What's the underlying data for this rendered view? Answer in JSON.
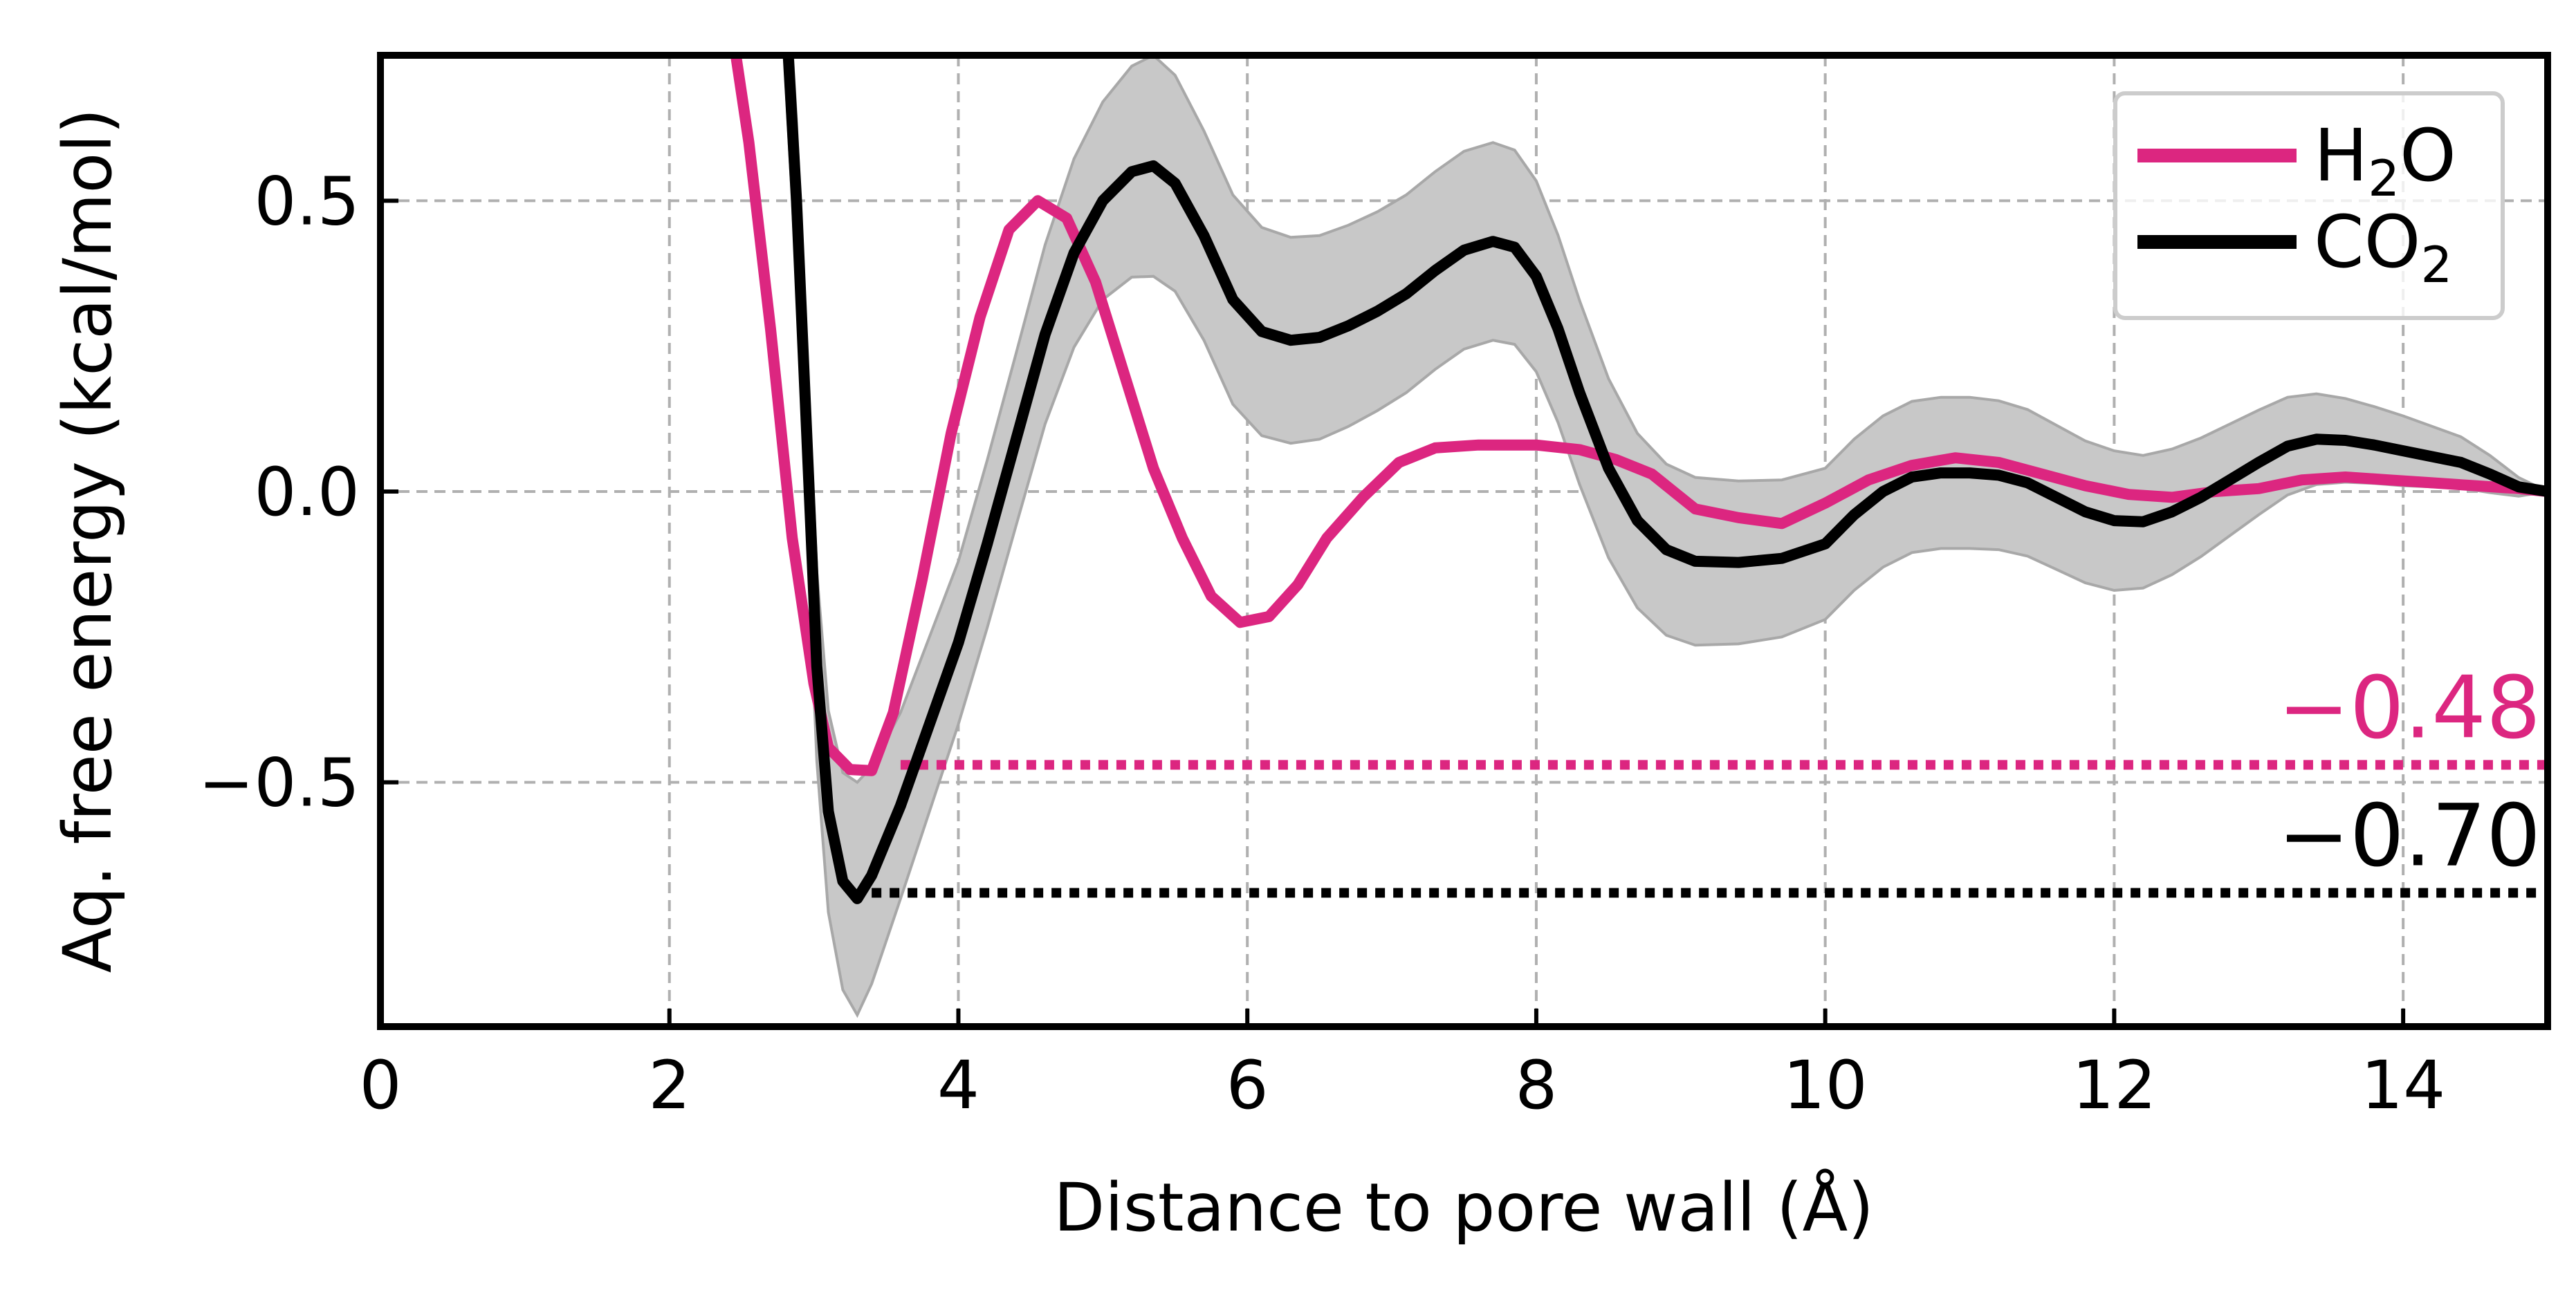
{
  "chart_data": {
    "type": "line",
    "xlabel": "Distance to pore wall (Å)",
    "ylabel": "Aq. free energy  (kcal/mol)",
    "xlim": [
      0,
      15
    ],
    "ylim": [
      -0.92,
      0.75
    ],
    "x_ticks": [
      0,
      2,
      4,
      6,
      8,
      10,
      12,
      14
    ],
    "x_tick_labels": [
      "0",
      "2",
      "4",
      "6",
      "8",
      "10",
      "12",
      "14"
    ],
    "y_ticks": [
      0.5,
      0.0,
      -0.5
    ],
    "y_tick_labels": [
      "0.5",
      "0.0",
      "−0.5"
    ],
    "grid": true,
    "legend_position": "top-right",
    "series": [
      {
        "name_parts": [
          "H",
          "2",
          "O"
        ],
        "color": "#dc2680",
        "points": [
          [
            2.4,
            0.85
          ],
          [
            2.55,
            0.6
          ],
          [
            2.7,
            0.28
          ],
          [
            2.85,
            -0.08
          ],
          [
            3.0,
            -0.33
          ],
          [
            3.1,
            -0.44
          ],
          [
            3.25,
            -0.478
          ],
          [
            3.4,
            -0.48
          ],
          [
            3.55,
            -0.38
          ],
          [
            3.75,
            -0.15
          ],
          [
            3.95,
            0.1
          ],
          [
            4.15,
            0.3
          ],
          [
            4.35,
            0.45
          ],
          [
            4.55,
            0.5
          ],
          [
            4.75,
            0.47
          ],
          [
            4.95,
            0.36
          ],
          [
            5.15,
            0.2
          ],
          [
            5.35,
            0.04
          ],
          [
            5.55,
            -0.08
          ],
          [
            5.75,
            -0.18
          ],
          [
            5.95,
            -0.225
          ],
          [
            6.15,
            -0.215
          ],
          [
            6.35,
            -0.16
          ],
          [
            6.55,
            -0.08
          ],
          [
            6.8,
            -0.01
          ],
          [
            7.05,
            0.05
          ],
          [
            7.3,
            0.075
          ],
          [
            7.6,
            0.08
          ],
          [
            8.0,
            0.08
          ],
          [
            8.3,
            0.072
          ],
          [
            8.55,
            0.055
          ],
          [
            8.8,
            0.03
          ],
          [
            9.1,
            -0.03
          ],
          [
            9.4,
            -0.045
          ],
          [
            9.7,
            -0.055
          ],
          [
            10.0,
            -0.02
          ],
          [
            10.3,
            0.02
          ],
          [
            10.6,
            0.045
          ],
          [
            10.9,
            0.058
          ],
          [
            11.2,
            0.05
          ],
          [
            11.5,
            0.03
          ],
          [
            11.8,
            0.01
          ],
          [
            12.1,
            -0.005
          ],
          [
            12.4,
            -0.01
          ],
          [
            12.7,
            0.0
          ],
          [
            13.0,
            0.005
          ],
          [
            13.3,
            0.02
          ],
          [
            13.6,
            0.025
          ],
          [
            13.9,
            0.02
          ],
          [
            14.2,
            0.015
          ],
          [
            14.5,
            0.01
          ],
          [
            14.8,
            0.005
          ],
          [
            15.0,
            0.0
          ]
        ]
      },
      {
        "name_parts": [
          "CO",
          "2",
          ""
        ],
        "color": "#000000",
        "points": [
          [
            2.8,
            0.85
          ],
          [
            2.88,
            0.5
          ],
          [
            2.95,
            0.1
          ],
          [
            3.02,
            -0.3
          ],
          [
            3.1,
            -0.55
          ],
          [
            3.2,
            -0.67
          ],
          [
            3.3,
            -0.7
          ],
          [
            3.4,
            -0.66
          ],
          [
            3.6,
            -0.54
          ],
          [
            3.8,
            -0.4
          ],
          [
            4.0,
            -0.26
          ],
          [
            4.2,
            -0.09
          ],
          [
            4.4,
            0.09
          ],
          [
            4.6,
            0.27
          ],
          [
            4.8,
            0.41
          ],
          [
            5.0,
            0.5
          ],
          [
            5.2,
            0.55
          ],
          [
            5.35,
            0.56
          ],
          [
            5.5,
            0.53
          ],
          [
            5.7,
            0.44
          ],
          [
            5.9,
            0.33
          ],
          [
            6.1,
            0.275
          ],
          [
            6.3,
            0.26
          ],
          [
            6.5,
            0.265
          ],
          [
            6.7,
            0.285
          ],
          [
            6.9,
            0.31
          ],
          [
            7.1,
            0.34
          ],
          [
            7.3,
            0.38
          ],
          [
            7.5,
            0.415
          ],
          [
            7.7,
            0.43
          ],
          [
            7.85,
            0.42
          ],
          [
            8.0,
            0.37
          ],
          [
            8.15,
            0.28
          ],
          [
            8.3,
            0.17
          ],
          [
            8.5,
            0.04
          ],
          [
            8.7,
            -0.05
          ],
          [
            8.9,
            -0.1
          ],
          [
            9.1,
            -0.12
          ],
          [
            9.4,
            -0.122
          ],
          [
            9.7,
            -0.115
          ],
          [
            10.0,
            -0.09
          ],
          [
            10.2,
            -0.04
          ],
          [
            10.4,
            0.0
          ],
          [
            10.6,
            0.025
          ],
          [
            10.8,
            0.032
          ],
          [
            11.0,
            0.032
          ],
          [
            11.2,
            0.028
          ],
          [
            11.4,
            0.015
          ],
          [
            11.6,
            -0.01
          ],
          [
            11.8,
            -0.035
          ],
          [
            12.0,
            -0.05
          ],
          [
            12.2,
            -0.052
          ],
          [
            12.4,
            -0.035
          ],
          [
            12.6,
            -0.01
          ],
          [
            12.8,
            0.02
          ],
          [
            13.0,
            0.05
          ],
          [
            13.2,
            0.078
          ],
          [
            13.4,
            0.09
          ],
          [
            13.6,
            0.088
          ],
          [
            13.8,
            0.08
          ],
          [
            14.0,
            0.07
          ],
          [
            14.2,
            0.06
          ],
          [
            14.4,
            0.05
          ],
          [
            14.6,
            0.03
          ],
          [
            14.8,
            0.008
          ],
          [
            15.0,
            0.0
          ]
        ],
        "band_halfwidth": [
          [
            2.8,
            0.12
          ],
          [
            3.0,
            0.16
          ],
          [
            3.3,
            0.2
          ],
          [
            3.6,
            0.16
          ],
          [
            4.0,
            0.14
          ],
          [
            4.5,
            0.15
          ],
          [
            5.0,
            0.17
          ],
          [
            5.35,
            0.19
          ],
          [
            5.7,
            0.18
          ],
          [
            6.0,
            0.18
          ],
          [
            6.5,
            0.175
          ],
          [
            7.0,
            0.17
          ],
          [
            7.7,
            0.17
          ],
          [
            8.2,
            0.16
          ],
          [
            8.7,
            0.15
          ],
          [
            9.4,
            0.14
          ],
          [
            10.0,
            0.13
          ],
          [
            11.0,
            0.13
          ],
          [
            12.0,
            0.12
          ],
          [
            13.0,
            0.09
          ],
          [
            14.0,
            0.06
          ],
          [
            14.5,
            0.04
          ],
          [
            15.0,
            0.0
          ]
        ]
      }
    ],
    "annotations": [
      {
        "text": "−0.48",
        "y": -0.47,
        "x_start": 3.6,
        "color": "#dc2680"
      },
      {
        "text": "−0.70",
        "y": -0.69,
        "x_start": 3.4,
        "color": "#000000"
      }
    ]
  }
}
